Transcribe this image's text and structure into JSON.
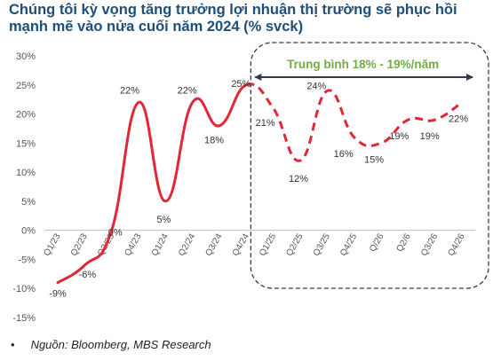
{
  "title": "Chúng tôi kỳ vọng tăng trưởng lợi nhuận thị trường sẽ phục hồi mạnh mẽ vào nửa cuối năm 2024 (% svck)",
  "source": "Nguồn: Bloomberg, MBS Research",
  "source_bullet": "•",
  "colors": {
    "line": "#e32636",
    "title": "#1f4e79",
    "annotation": "#70ad47",
    "box": "#2f3b52"
  },
  "chart_data": {
    "type": "line",
    "title": "Chúng tôi kỳ vọng tăng trưởng lợi nhuận thị trường sẽ phục hồi mạnh mẽ vào nửa cuối năm 2024 (% svck)",
    "categories": [
      "Q1/23",
      "Q2/23",
      "Q3/23",
      "Q4/23",
      "Q1/24",
      "Q2/24",
      "Q3/24",
      "Q4/24",
      "Q1/25",
      "Q2/25",
      "Q3/25",
      "Q4/25",
      "Q/26",
      "Q2/6",
      "Q3/26",
      "Q4/26"
    ],
    "values": [
      -9,
      -6,
      0,
      22,
      5,
      22,
      18,
      25,
      21,
      12,
      24,
      16,
      15,
      19,
      19,
      22
    ],
    "value_labels": [
      "-9%",
      "-6%",
      "0%",
      "22%",
      "5%",
      "22%",
      "18%",
      "25%",
      "21%",
      "12%",
      "24%",
      "16%",
      "15%",
      "19%",
      "19%",
      "22%"
    ],
    "actual_through": "Q4/24",
    "forecast_from": "Q4/24",
    "ylim": [
      -15,
      30
    ],
    "yticks": [
      -15,
      -10,
      -5,
      0,
      5,
      10,
      15,
      20,
      25,
      30
    ],
    "ytick_labels": [
      "-15%",
      "-10%",
      "-5%",
      "0%",
      "5%",
      "10%",
      "15%",
      "20%",
      "25%",
      "30%"
    ],
    "xlabel": "",
    "ylabel": "",
    "grid": false,
    "annotation": {
      "text": "Trung bình 18% - 19%/năm",
      "span": [
        "Q4/24",
        "Q4/26"
      ],
      "style": "double-arrow inside dashed rounded box"
    }
  }
}
